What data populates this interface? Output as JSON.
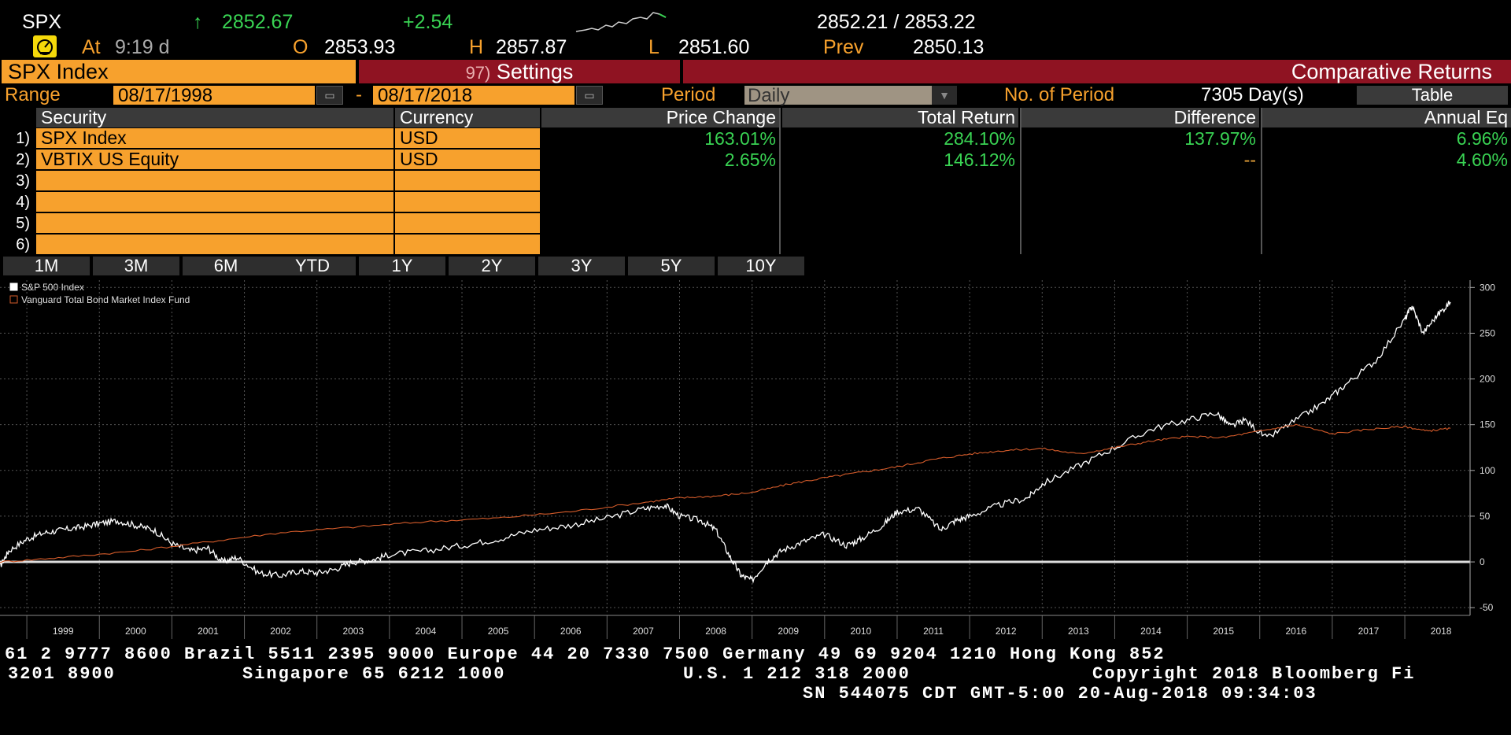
{
  "quote": {
    "ticker": "SPX",
    "arrow": "↑",
    "last": "2852.67",
    "change": "+2.54",
    "bid_ask": "2852.21 / 2853.22",
    "at_label": "At",
    "time": "9:19 d",
    "open_label": "O",
    "open": "2853.93",
    "high_label": "H",
    "high": "2857.87",
    "low_label": "L",
    "low": "2851.60",
    "prev_label": "Prev",
    "prev": "2850.13"
  },
  "titlebar": {
    "security": "SPX Index",
    "settings_num": "97)",
    "settings_label": "Settings",
    "function_title": "Comparative Returns"
  },
  "range_row": {
    "range_label": "Range",
    "start_date": "08/17/1998",
    "dash": "-",
    "end_date": "08/17/2018",
    "period_label": "Period",
    "period_value": "Daily",
    "num_period_label": "No. of Period",
    "num_period_value": "7305 Day(s)",
    "table_button": "Table"
  },
  "table": {
    "headers": [
      "Security",
      "Currency",
      "Price Change",
      "Total Return",
      "Difference",
      "Annual Eq"
    ],
    "rows": [
      {
        "num": "1)",
        "security": "SPX Index",
        "currency": "USD",
        "price_change": "163.01%",
        "total_return": "284.10%",
        "difference": "137.97%",
        "annual_eq": "6.96%"
      },
      {
        "num": "2)",
        "security": "VBTIX US Equity",
        "currency": "USD",
        "price_change": "2.65%",
        "total_return": "146.12%",
        "difference": "--",
        "annual_eq": "4.60%"
      },
      {
        "num": "3)",
        "security": "",
        "currency": "",
        "price_change": "",
        "total_return": "",
        "difference": "",
        "annual_eq": ""
      },
      {
        "num": "4)",
        "security": "",
        "currency": "",
        "price_change": "",
        "total_return": "",
        "difference": "",
        "annual_eq": ""
      },
      {
        "num": "5)",
        "security": "",
        "currency": "",
        "price_change": "",
        "total_return": "",
        "difference": "",
        "annual_eq": ""
      },
      {
        "num": "6)",
        "security": "",
        "currency": "",
        "price_change": "",
        "total_return": "",
        "difference": "",
        "annual_eq": ""
      }
    ]
  },
  "period_buttons": [
    "1M",
    "3M",
    "6M",
    "YTD",
    "1Y",
    "2Y",
    "3Y",
    "5Y",
    "10Y"
  ],
  "chart_data": {
    "type": "line",
    "title": "",
    "xlabel": "",
    "ylabel": "",
    "x_tick_labels": [
      "1999",
      "2000",
      "2001",
      "2002",
      "2003",
      "2004",
      "2005",
      "2006",
      "2007",
      "2008",
      "2009",
      "2010",
      "2011",
      "2012",
      "2013",
      "2014",
      "2015",
      "2016",
      "2017",
      "2018"
    ],
    "y_tick_labels": [
      "300",
      "250",
      "200",
      "150",
      "100",
      "50",
      "0",
      "-50"
    ],
    "xlim": [
      1998.63,
      2018.9
    ],
    "ylim": [
      -55,
      308
    ],
    "grid": true,
    "legend_position": "top-left",
    "zero_line": true,
    "series": [
      {
        "name": "S&P 500 Index",
        "color": "#ffffff",
        "x": [
          1998.63,
          1998.75,
          1999.0,
          1999.25,
          1999.5,
          1999.75,
          2000.0,
          2000.25,
          2000.5,
          2000.75,
          2001.0,
          2001.25,
          2001.5,
          2001.7,
          2001.9,
          2002.2,
          2002.5,
          2002.75,
          2003.0,
          2003.25,
          2003.5,
          2003.75,
          2004.0,
          2004.5,
          2005.0,
          2005.5,
          2006.0,
          2006.5,
          2007.0,
          2007.5,
          2007.8,
          2008.0,
          2008.3,
          2008.5,
          2008.7,
          2008.85,
          2009.0,
          2009.2,
          2009.4,
          2009.7,
          2010.0,
          2010.3,
          2010.5,
          2010.8,
          2011.0,
          2011.3,
          2011.6,
          2011.8,
          2012.0,
          2012.4,
          2012.8,
          2013.0,
          2013.5,
          2014.0,
          2014.5,
          2015.0,
          2015.4,
          2015.6,
          2015.8,
          2016.1,
          2016.5,
          2016.9,
          2017.2,
          2017.6,
          2018.0,
          2018.1,
          2018.25,
          2018.45,
          2018.63
        ],
        "y": [
          -5,
          12,
          25,
          32,
          35,
          38,
          42,
          45,
          40,
          35,
          20,
          12,
          15,
          0,
          5,
          -12,
          -15,
          -10,
          -12,
          -8,
          0,
          2,
          8,
          12,
          18,
          25,
          35,
          40,
          48,
          58,
          62,
          50,
          45,
          35,
          5,
          -15,
          -20,
          0,
          12,
          22,
          30,
          18,
          25,
          40,
          55,
          58,
          35,
          45,
          50,
          62,
          70,
          85,
          105,
          125,
          145,
          155,
          163,
          148,
          155,
          135,
          155,
          175,
          195,
          220,
          265,
          280,
          250,
          270,
          284
        ]
      },
      {
        "name": "Vanguard Total Bond Market Index Fund",
        "color": "#d45b2a",
        "x": [
          1998.63,
          1999.5,
          2000.5,
          2001.5,
          2002.5,
          2003.5,
          2004.5,
          2005.5,
          2006.5,
          2007.5,
          2008.0,
          2008.5,
          2009.0,
          2009.5,
          2010.0,
          2010.5,
          2011.0,
          2011.5,
          2012.0,
          2012.5,
          2013.0,
          2013.5,
          2014.0,
          2014.5,
          2015.0,
          2015.5,
          2016.0,
          2016.5,
          2017.0,
          2017.5,
          2018.0,
          2018.3,
          2018.63
        ],
        "y": [
          0,
          5,
          12,
          22,
          32,
          38,
          44,
          48,
          55,
          65,
          70,
          72,
          76,
          85,
          92,
          98,
          104,
          112,
          118,
          122,
          124,
          118,
          125,
          132,
          137,
          136,
          143,
          150,
          140,
          145,
          148,
          143,
          146
        ]
      }
    ]
  },
  "ticker_tape": {
    "line1": "61 2 9777 8600 Brazil 5511 2395 9000 Europe 44 20 7330 7500 Germany 49 69 9204 1210 Hong Kong 852",
    "line2_a": "3201 8900",
    "line2_b": "Singapore 65 6212 1000",
    "line2_c": "U.S. 1 212 318 2000",
    "line2_d": "Copyright 2018 Bloomberg Fi",
    "line3": "SN 544075 CDT  GMT-5:00 20-Aug-2018 09:34:03"
  },
  "colors": {
    "amber": "#f7a12d",
    "maroon": "#8f1322",
    "green": "#39d353",
    "bond_line": "#d45b2a"
  }
}
